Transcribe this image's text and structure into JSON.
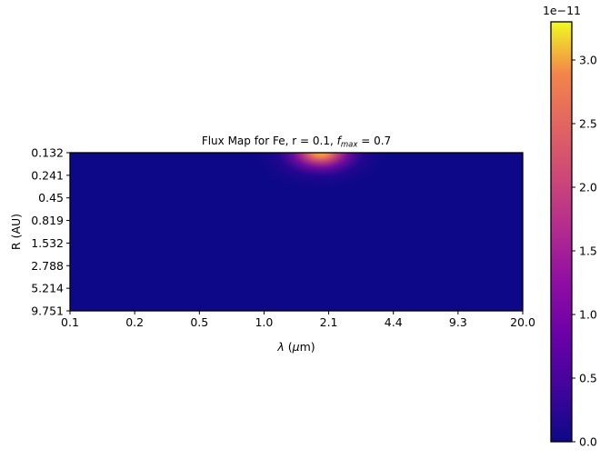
{
  "chart_data": {
    "type": "heatmap",
    "title": {
      "prefix": "Flux Map for Fe, r = 0.1, ",
      "fmax_symbol": "f",
      "fmax_subscript": "max",
      "suffix": " = 0.7"
    },
    "xlabel": {
      "symbol": "λ",
      "unit_prefix": " (",
      "unit_mu": "μ",
      "unit_rest": "m)"
    },
    "ylabel": "R (AU)",
    "x_ticks": [
      "0.1",
      "0.2",
      "0.5",
      "1.0",
      "2.1",
      "4.4",
      "9.3",
      "20.0"
    ],
    "y_ticks": [
      "0.132",
      "0.241",
      "0.45",
      "0.819",
      "1.532",
      "2.788",
      "5.214",
      "9.751"
    ],
    "x_scale": "log",
    "y_scale": "log",
    "y_axis": "inverted",
    "colormap": "plasma",
    "colorbar": {
      "ticks": [
        "0.0",
        "0.5",
        "1.0",
        "1.5",
        "2.0",
        "2.5",
        "3.0"
      ],
      "tick_values": [
        0.0,
        0.5,
        1.0,
        1.5,
        2.0,
        2.5,
        3.0
      ],
      "range": [
        0.0,
        3.3
      ],
      "multiplier": "1e−11"
    },
    "peak": {
      "wavelength_um": 2.1,
      "radius_AU": 0.132,
      "value": 3.3
    }
  }
}
